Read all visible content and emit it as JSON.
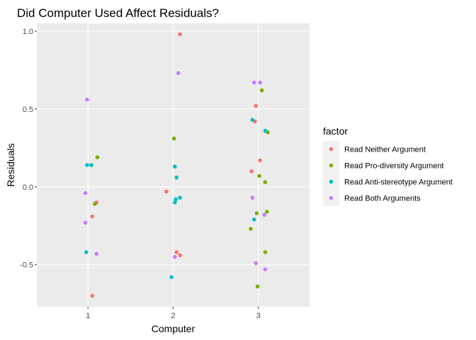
{
  "chart_data": {
    "type": "scatter",
    "title": "Did Computer Used Affect Residuals?",
    "xlabel": "Computer",
    "ylabel": "Residuals",
    "x_ticks": [
      "1",
      "2",
      "3"
    ],
    "y_ticks": [
      "-0.5",
      "0.0",
      "0.5",
      "1.0"
    ],
    "xlim": [
      0.4,
      3.6
    ],
    "ylim": [
      -0.77,
      1.05
    ],
    "grid": true,
    "legend_position": "right",
    "legend_title": "factor",
    "series": [
      {
        "name": "Read Neither Argument",
        "color": "#F8766D",
        "points": [
          {
            "x": 1.05,
            "y": -0.7
          },
          {
            "x": 1.05,
            "y": -0.19
          },
          {
            "x": 1.1,
            "y": -0.1
          },
          {
            "x": 1.92,
            "y": -0.03
          },
          {
            "x": 2.04,
            "y": -0.42
          },
          {
            "x": 2.08,
            "y": -0.44
          },
          {
            "x": 2.08,
            "y": 0.98
          },
          {
            "x": 2.92,
            "y": 0.1
          },
          {
            "x": 2.96,
            "y": 0.42
          },
          {
            "x": 2.97,
            "y": 0.52
          },
          {
            "x": 3.02,
            "y": 0.17
          }
        ]
      },
      {
        "name": "Read Pro-diversity Argument",
        "color": "#7CAE00",
        "points": [
          {
            "x": 1.08,
            "y": -0.11
          },
          {
            "x": 1.11,
            "y": 0.19
          },
          {
            "x": 2.01,
            "y": 0.31
          },
          {
            "x": 2.91,
            "y": -0.27
          },
          {
            "x": 2.98,
            "y": -0.17
          },
          {
            "x": 2.99,
            "y": -0.64
          },
          {
            "x": 3.01,
            "y": 0.07
          },
          {
            "x": 3.04,
            "y": 0.62
          },
          {
            "x": 3.08,
            "y": 0.03
          },
          {
            "x": 3.08,
            "y": -0.42
          },
          {
            "x": 3.1,
            "y": -0.16
          },
          {
            "x": 3.11,
            "y": 0.35
          }
        ]
      },
      {
        "name": "Read Anti-stereotype Argument",
        "color": "#00BFC4",
        "points": [
          {
            "x": 0.98,
            "y": -0.42
          },
          {
            "x": 0.99,
            "y": 0.14
          },
          {
            "x": 1.04,
            "y": 0.14
          },
          {
            "x": 1.98,
            "y": -0.58
          },
          {
            "x": 2.02,
            "y": 0.13
          },
          {
            "x": 2.02,
            "y": -0.1
          },
          {
            "x": 2.03,
            "y": -0.08
          },
          {
            "x": 2.04,
            "y": 0.06
          },
          {
            "x": 2.08,
            "y": -0.07
          },
          {
            "x": 2.93,
            "y": 0.43
          },
          {
            "x": 2.95,
            "y": -0.21
          },
          {
            "x": 3.08,
            "y": 0.36
          }
        ]
      },
      {
        "name": "Read Both Arguments",
        "color": "#C77CFF",
        "points": [
          {
            "x": 0.97,
            "y": -0.04
          },
          {
            "x": 0.97,
            "y": -0.23
          },
          {
            "x": 0.99,
            "y": 0.56
          },
          {
            "x": 1.1,
            "y": -0.43
          },
          {
            "x": 2.02,
            "y": -0.45
          },
          {
            "x": 2.06,
            "y": 0.73
          },
          {
            "x": 2.93,
            "y": -0.07
          },
          {
            "x": 2.95,
            "y": 0.67
          },
          {
            "x": 2.97,
            "y": -0.49
          },
          {
            "x": 3.02,
            "y": 0.67
          },
          {
            "x": 3.07,
            "y": -0.18
          },
          {
            "x": 3.08,
            "y": -0.53
          }
        ]
      }
    ]
  }
}
